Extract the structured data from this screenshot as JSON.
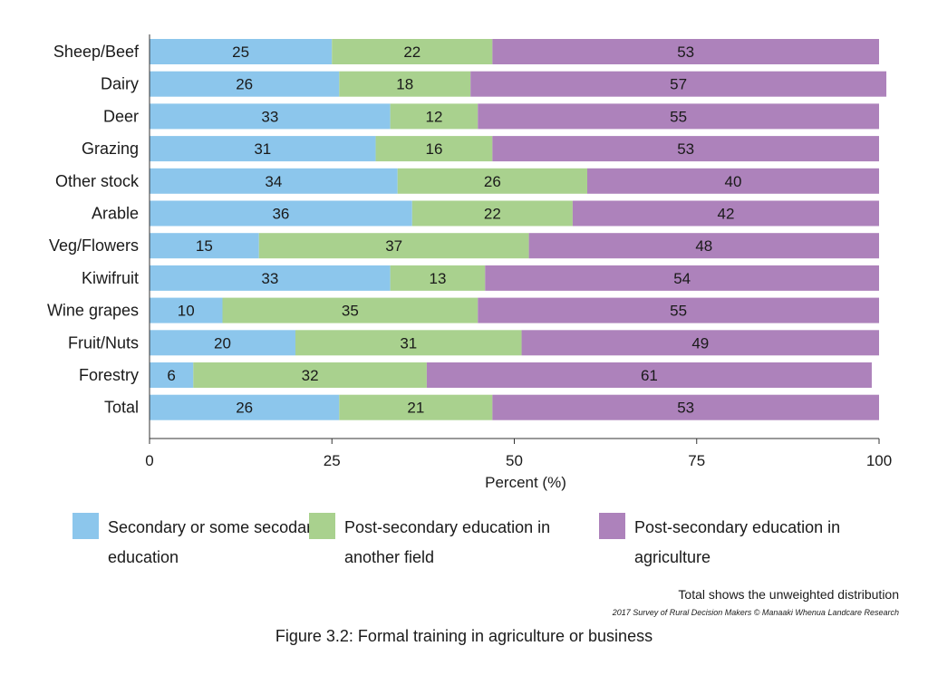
{
  "chart_data": {
    "type": "bar",
    "orientation": "horizontal",
    "stacked": true,
    "categories": [
      "Sheep/Beef",
      "Dairy",
      "Deer",
      "Grazing",
      "Other stock",
      "Arable",
      "Veg/Flowers",
      "Kiwifruit",
      "Wine grapes",
      "Fruit/Nuts",
      "Forestry",
      "Total"
    ],
    "series": [
      {
        "name": "Secondary or some secodary education",
        "color": "#8cc6ec",
        "values": [
          25,
          26,
          33,
          31,
          34,
          36,
          15,
          33,
          10,
          20,
          6,
          26
        ]
      },
      {
        "name": "Post-secondary education in another field",
        "color": "#a9d18e",
        "values": [
          22,
          18,
          12,
          16,
          26,
          22,
          37,
          13,
          35,
          31,
          32,
          21
        ]
      },
      {
        "name": "Post-secondary education in agriculture",
        "color": "#ad82bb",
        "values": [
          53,
          57,
          55,
          53,
          40,
          42,
          48,
          54,
          55,
          49,
          61,
          53
        ]
      }
    ],
    "xlabel": "Percent (%)",
    "xlim": [
      0,
      100
    ],
    "xticks": [
      0,
      25,
      50,
      75,
      100
    ],
    "grid": false,
    "legend_position": "bottom"
  },
  "note": "Total shows the unweighted distribution",
  "credit": "2017 Survey of Rural Decision Makers © Manaaki Whenua Landcare Research",
  "caption": "Figure 3.2: Formal training in agriculture or business"
}
